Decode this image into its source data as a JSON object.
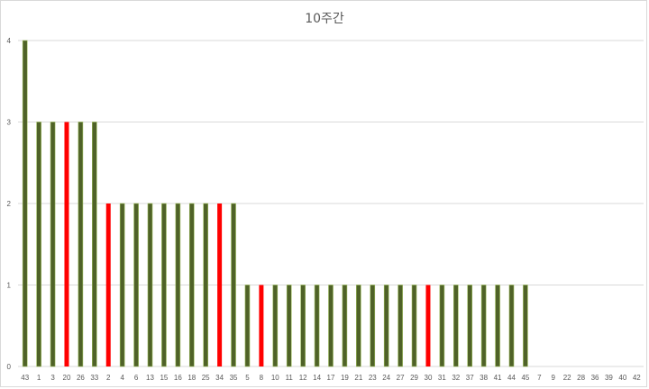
{
  "chart_data": {
    "type": "bar",
    "title": "10주간",
    "categories": [
      "43",
      "1",
      "3",
      "20",
      "26",
      "33",
      "2",
      "4",
      "6",
      "13",
      "15",
      "16",
      "18",
      "25",
      "34",
      "35",
      "5",
      "8",
      "10",
      "11",
      "12",
      "14",
      "17",
      "19",
      "21",
      "23",
      "24",
      "27",
      "29",
      "30",
      "31",
      "32",
      "37",
      "38",
      "41",
      "44",
      "45",
      "7",
      "9",
      "22",
      "28",
      "36",
      "39",
      "40",
      "42"
    ],
    "values": [
      4,
      3,
      3,
      3,
      3,
      3,
      2,
      2,
      2,
      2,
      2,
      2,
      2,
      2,
      2,
      2,
      1,
      1,
      1,
      1,
      1,
      1,
      1,
      1,
      1,
      1,
      1,
      1,
      1,
      1,
      1,
      1,
      1,
      1,
      1,
      1,
      1,
      0,
      0,
      0,
      0,
      0,
      0,
      0,
      0
    ],
    "highlighted_categories": [
      "20",
      "2",
      "34",
      "8",
      "30"
    ],
    "ylim": [
      0,
      4
    ],
    "yticks": [
      0,
      1,
      2,
      3,
      4
    ],
    "grid": true,
    "legend": "none",
    "xlabel": "",
    "ylabel": "",
    "colors": {
      "bar": "#4f6228",
      "bar_edge": "#9bbb59",
      "highlight": "#ff0000",
      "grid": "#d9d9d9",
      "text": "#595959"
    }
  }
}
